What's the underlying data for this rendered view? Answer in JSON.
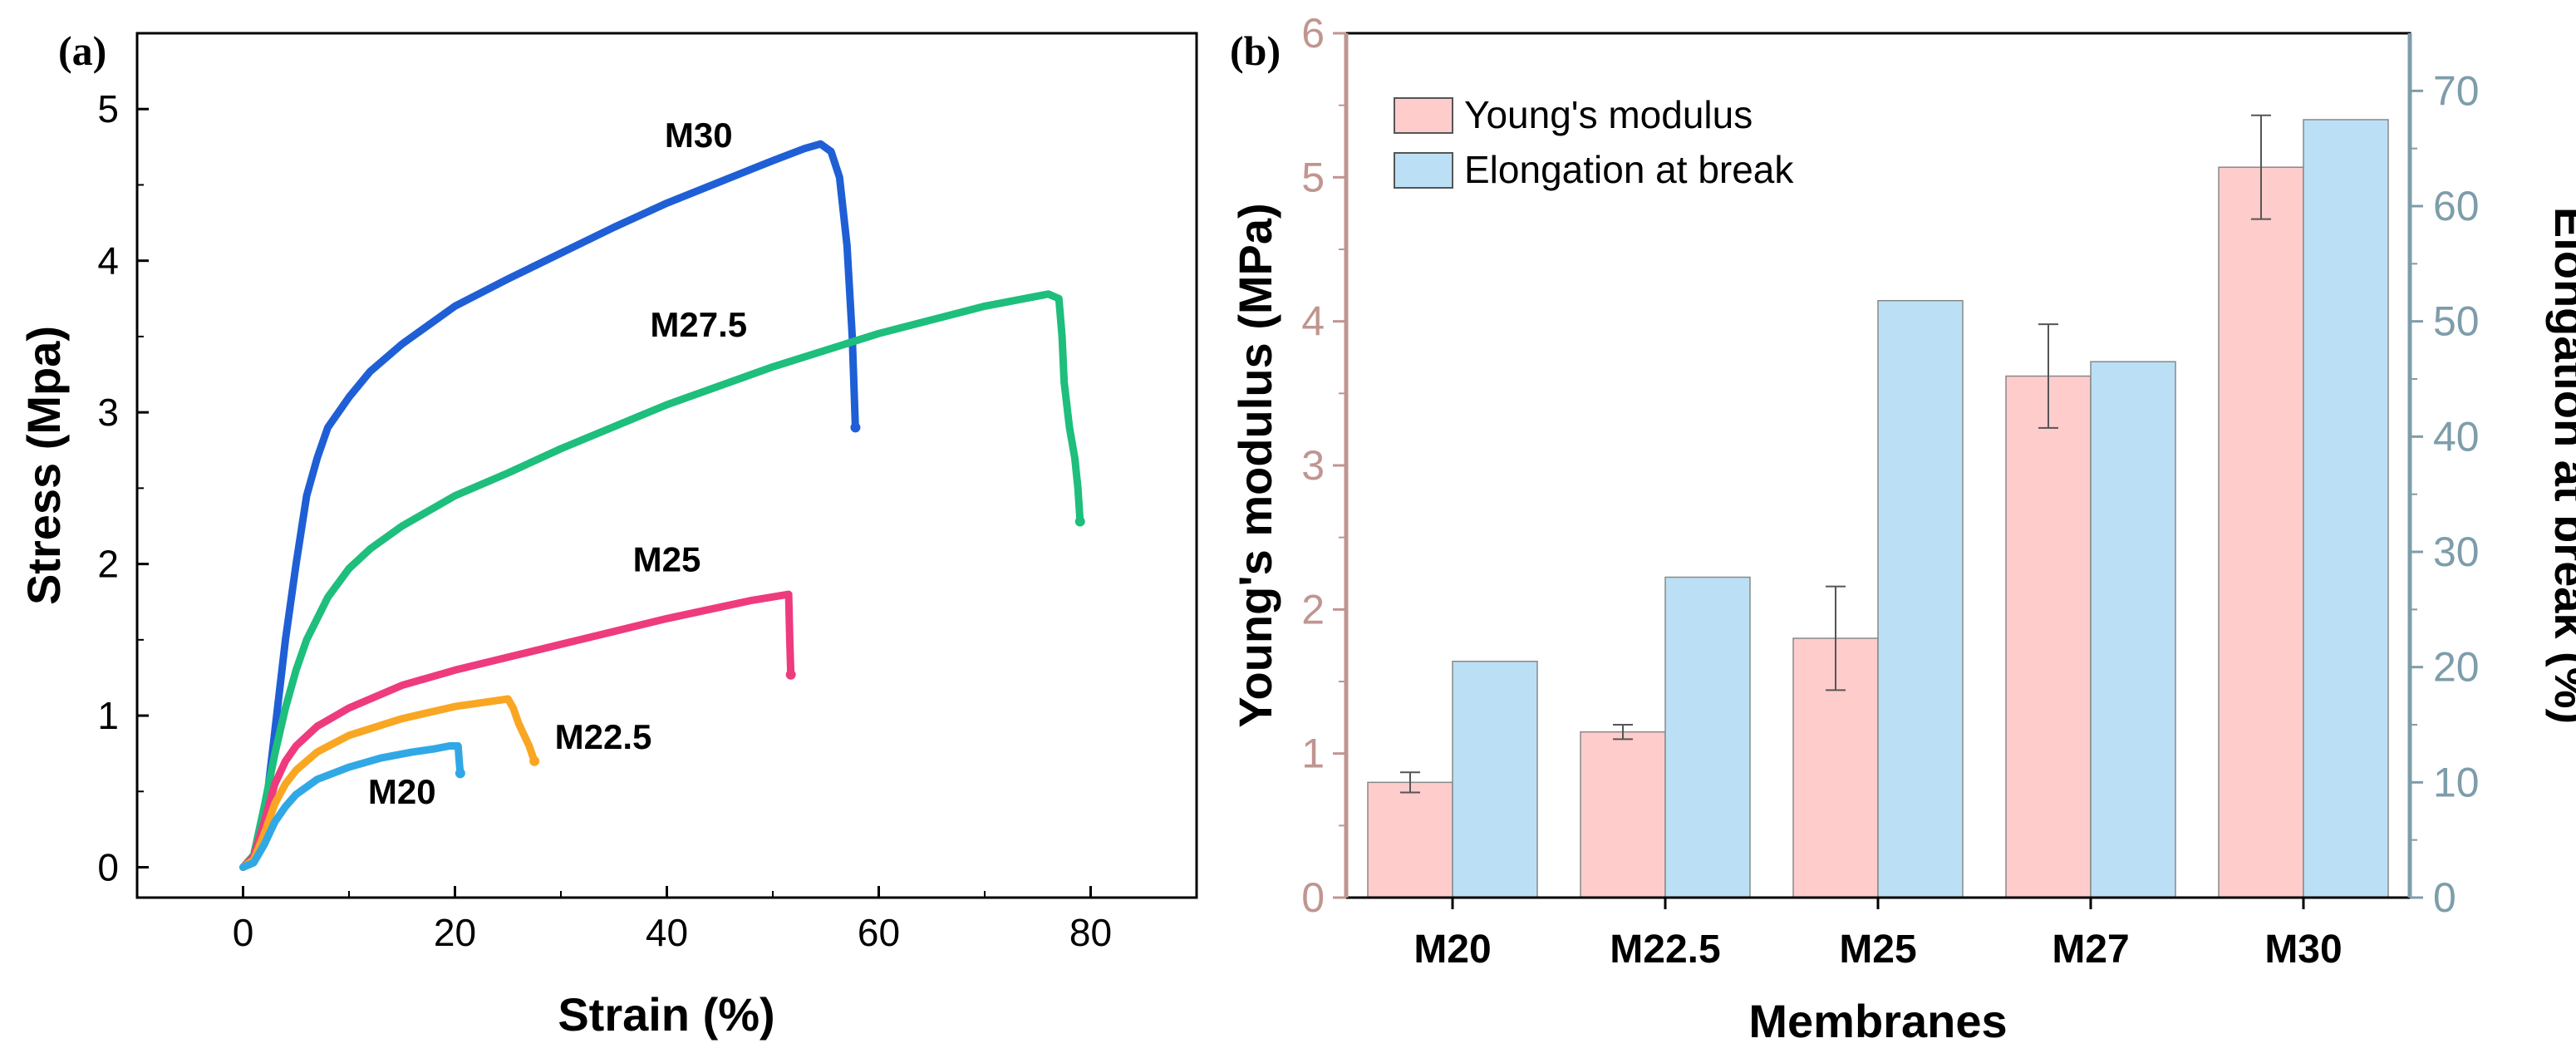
{
  "chart_data": [
    {
      "panel_label": "(a)",
      "type": "line",
      "xlabel": "Strain (%)",
      "ylabel": "Stress (Mpa)",
      "xlim": [
        -10,
        90
      ],
      "ylim": [
        -0.2,
        5.5
      ],
      "xticks": [
        "0",
        "20",
        "40",
        "60",
        "80"
      ],
      "xtick_values": [
        0,
        20,
        40,
        60,
        80
      ],
      "yticks": [
        "0",
        "1",
        "2",
        "3",
        "4",
        "5"
      ],
      "ytick_values": [
        0,
        1,
        2,
        3,
        4,
        5
      ],
      "series": [
        {
          "name": "M30",
          "label_anchor": [
            43,
            4.75
          ],
          "color": "#1F5FD6",
          "points": [
            [
              0,
              0
            ],
            [
              1,
              0.05
            ],
            [
              2,
              0.3
            ],
            [
              3,
              0.9
            ],
            [
              4,
              1.5
            ],
            [
              5,
              2.0
            ],
            [
              6,
              2.45
            ],
            [
              7,
              2.7
            ],
            [
              8,
              2.9
            ],
            [
              10,
              3.1
            ],
            [
              12,
              3.27
            ],
            [
              15,
              3.45
            ],
            [
              20,
              3.7
            ],
            [
              25,
              3.88
            ],
            [
              30,
              4.05
            ],
            [
              35,
              4.22
            ],
            [
              40,
              4.38
            ],
            [
              45,
              4.52
            ],
            [
              50,
              4.66
            ],
            [
              53,
              4.74
            ],
            [
              54.5,
              4.77
            ],
            [
              55.5,
              4.72
            ],
            [
              56.3,
              4.55
            ],
            [
              57,
              4.1
            ],
            [
              57.5,
              3.5
            ],
            [
              57.8,
              2.9
            ]
          ]
        },
        {
          "name": "M27.5",
          "label_anchor": [
            43,
            3.5
          ],
          "color": "#1EBE7C",
          "points": [
            [
              0,
              0
            ],
            [
              1,
              0.08
            ],
            [
              2,
              0.4
            ],
            [
              3,
              0.75
            ],
            [
              4,
              1.05
            ],
            [
              5,
              1.3
            ],
            [
              6,
              1.5
            ],
            [
              8,
              1.78
            ],
            [
              10,
              1.97
            ],
            [
              12,
              2.1
            ],
            [
              15,
              2.25
            ],
            [
              20,
              2.45
            ],
            [
              25,
              2.6
            ],
            [
              30,
              2.76
            ],
            [
              40,
              3.05
            ],
            [
              50,
              3.3
            ],
            [
              60,
              3.52
            ],
            [
              70,
              3.7
            ],
            [
              76,
              3.78
            ],
            [
              77,
              3.75
            ],
            [
              77.3,
              3.5
            ],
            [
              77.5,
              3.2
            ],
            [
              78,
              2.9
            ],
            [
              78.5,
              2.7
            ],
            [
              78.8,
              2.5
            ],
            [
              79,
              2.28
            ]
          ]
        },
        {
          "name": "M25",
          "label_anchor": [
            40,
            1.95
          ],
          "color": "#EE3B7E",
          "points": [
            [
              0,
              0
            ],
            [
              1,
              0.07
            ],
            [
              2,
              0.3
            ],
            [
              3,
              0.55
            ],
            [
              4,
              0.7
            ],
            [
              5,
              0.8
            ],
            [
              7,
              0.93
            ],
            [
              10,
              1.05
            ],
            [
              15,
              1.2
            ],
            [
              20,
              1.3
            ],
            [
              30,
              1.47
            ],
            [
              40,
              1.64
            ],
            [
              48,
              1.76
            ],
            [
              51.5,
              1.8
            ],
            [
              51.6,
              1.5
            ],
            [
              51.7,
              1.27
            ]
          ]
        },
        {
          "name": "M22.5",
          "label_anchor": [
            34,
            0.78
          ],
          "color": "#F9A623",
          "points": [
            [
              0,
              0
            ],
            [
              1,
              0.05
            ],
            [
              2,
              0.22
            ],
            [
              3,
              0.42
            ],
            [
              4,
              0.55
            ],
            [
              5,
              0.64
            ],
            [
              7,
              0.76
            ],
            [
              10,
              0.87
            ],
            [
              15,
              0.98
            ],
            [
              20,
              1.06
            ],
            [
              24,
              1.1
            ],
            [
              25,
              1.11
            ],
            [
              25.5,
              1.05
            ],
            [
              26,
              0.95
            ],
            [
              27,
              0.8
            ],
            [
              27.5,
              0.7
            ]
          ]
        },
        {
          "name": "M20",
          "label_anchor": [
            15,
            0.42
          ],
          "color": "#31A8E6",
          "points": [
            [
              0,
              0
            ],
            [
              1,
              0.03
            ],
            [
              2,
              0.15
            ],
            [
              3,
              0.3
            ],
            [
              4,
              0.4
            ],
            [
              5,
              0.48
            ],
            [
              7,
              0.58
            ],
            [
              10,
              0.66
            ],
            [
              13,
              0.72
            ],
            [
              16,
              0.76
            ],
            [
              18,
              0.78
            ],
            [
              19.5,
              0.8
            ],
            [
              20.3,
              0.8
            ],
            [
              20.4,
              0.7
            ],
            [
              20.5,
              0.62
            ]
          ]
        }
      ]
    },
    {
      "panel_label": "(b)",
      "type": "bar",
      "xlabel": "Membranes",
      "ylabel": "Young's modulus (MPa)",
      "ylabel_right": "Elongation at break (%)",
      "categories": [
        "M20",
        "M22.5",
        "M25",
        "M27",
        "M30"
      ],
      "ylim": [
        0,
        6
      ],
      "ylim_right": [
        0,
        75
      ],
      "yticks": [
        "0",
        "1",
        "2",
        "3",
        "4",
        "5",
        "6"
      ],
      "ytick_values": [
        0,
        1,
        2,
        3,
        4,
        5,
        6
      ],
      "yticks_right": [
        "0",
        "10",
        "20",
        "30",
        "40",
        "50",
        "60",
        "70"
      ],
      "ytick_values_right": [
        0,
        10,
        20,
        30,
        40,
        50,
        60,
        70
      ],
      "legend": [
        "Young's modulus",
        "Elongation at break"
      ],
      "legend_position": "top-left",
      "series": [
        {
          "name": "Young's modulus",
          "axis": "left",
          "color": "#FFCCCC",
          "values": [
            0.8,
            1.15,
            1.8,
            3.62,
            5.07
          ],
          "errors": [
            0.07,
            0.05,
            0.36,
            0.36,
            0.36
          ]
        },
        {
          "name": "Elongation at break",
          "axis": "right",
          "color": "#BBE0F5",
          "values": [
            20.5,
            27.8,
            51.8,
            46.5,
            67.5
          ]
        }
      ],
      "axis_colors": {
        "left": "#C09590",
        "right": "#7E9DAA"
      }
    }
  ]
}
